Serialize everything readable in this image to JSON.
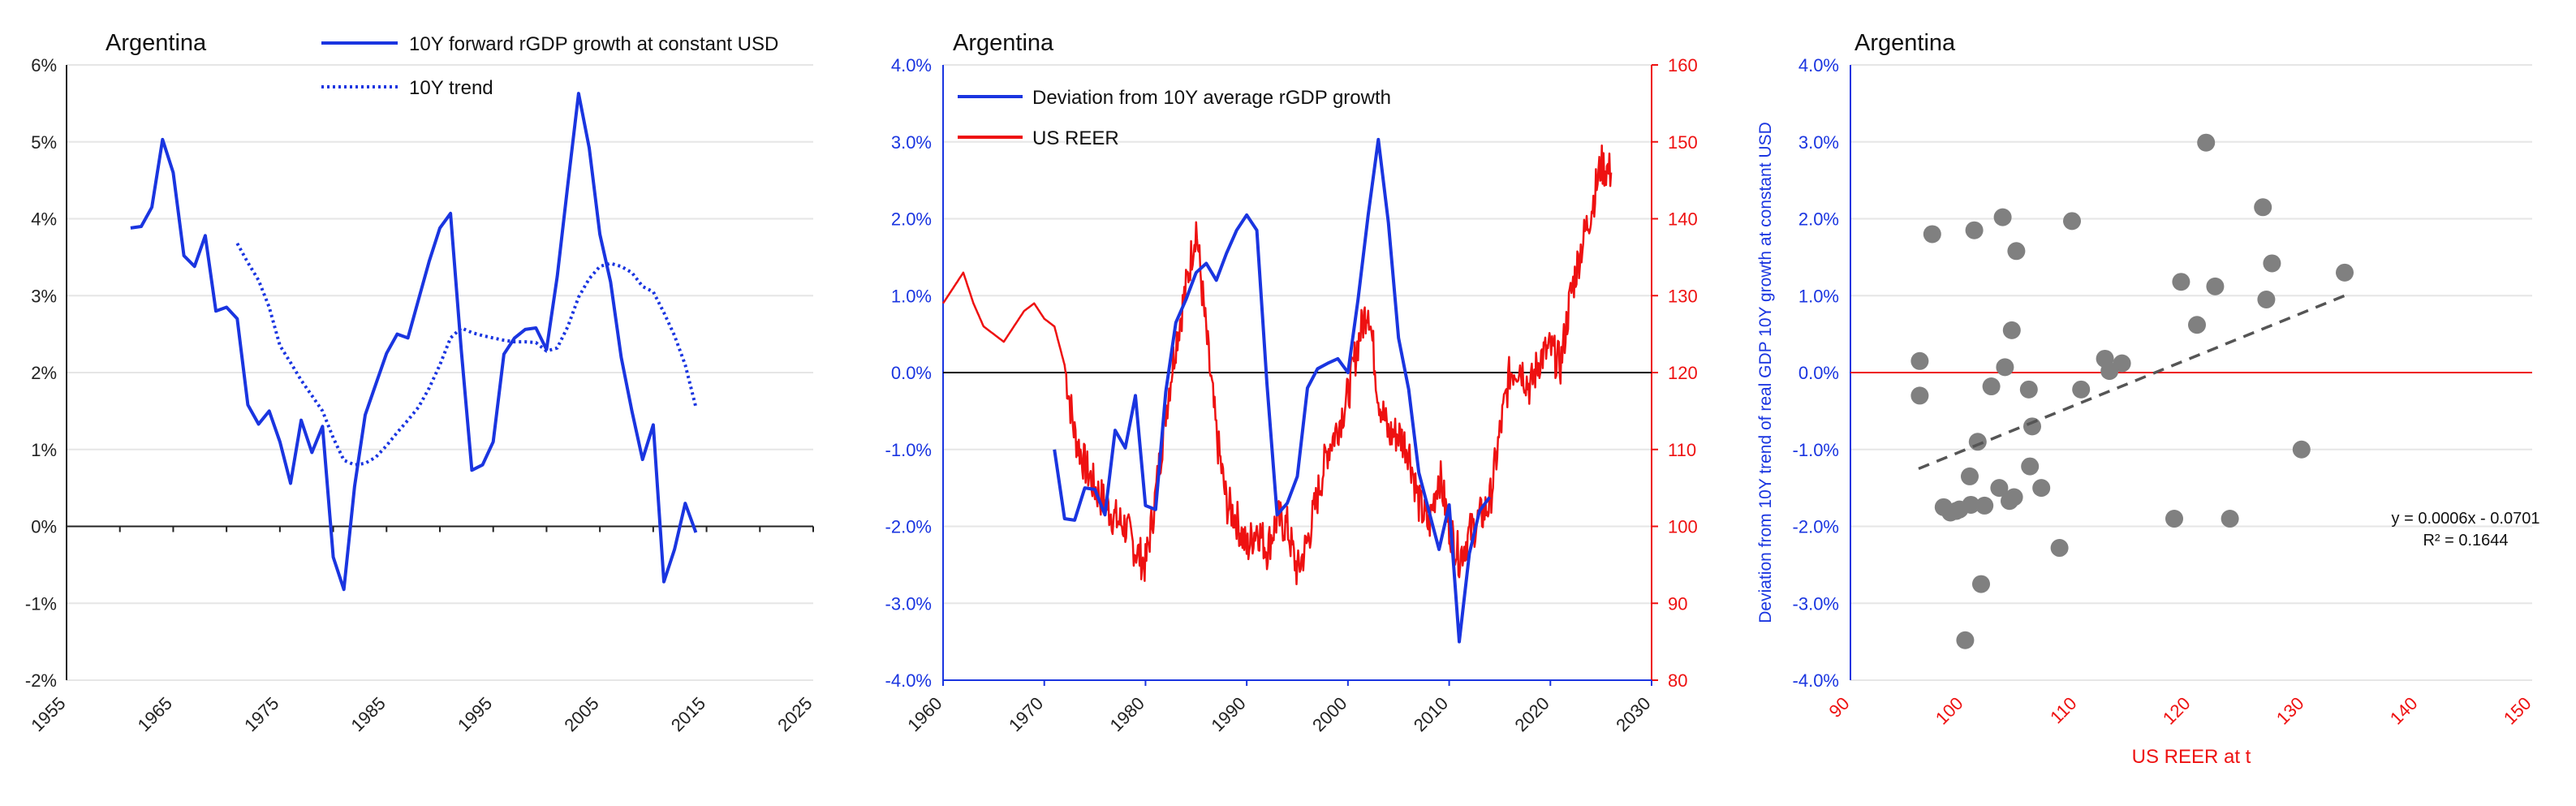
{
  "chart_data": [
    {
      "type": "line",
      "title": "Argentina",
      "xlim": [
        1955,
        2025
      ],
      "ylim": [
        -2,
        6
      ],
      "x_ticks": [
        "1955",
        "1965",
        "1975",
        "1985",
        "1995",
        "2005",
        "2015",
        "2025"
      ],
      "y_ticks": [
        "-2%",
        "-1%",
        "0%",
        "1%",
        "2%",
        "3%",
        "4%",
        "5%",
        "6%"
      ],
      "colors": {
        "series": "#1a35e0"
      },
      "legend": "top-right",
      "series": [
        {
          "name": "10Y forward rGDP growth at constant USD",
          "style": "solid",
          "points": [
            [
              1961,
              3.88
            ],
            [
              1962,
              3.9
            ],
            [
              1963,
              4.15
            ],
            [
              1964,
              5.03
            ],
            [
              1965,
              4.6
            ],
            [
              1966,
              3.52
            ],
            [
              1967,
              3.38
            ],
            [
              1968,
              3.78
            ],
            [
              1969,
              2.8
            ],
            [
              1970,
              2.85
            ],
            [
              1971,
              2.7
            ],
            [
              1972,
              1.58
            ],
            [
              1973,
              1.33
            ],
            [
              1974,
              1.5
            ],
            [
              1975,
              1.1
            ],
            [
              1976,
              0.56
            ],
            [
              1977,
              1.38
            ],
            [
              1978,
              0.96
            ],
            [
              1979,
              1.3
            ],
            [
              1980,
              -0.4
            ],
            [
              1981,
              -0.82
            ],
            [
              1982,
              0.52
            ],
            [
              1983,
              1.45
            ],
            [
              1984,
              1.85
            ],
            [
              1985,
              2.25
            ],
            [
              1986,
              2.5
            ],
            [
              1987,
              2.45
            ],
            [
              1988,
              2.95
            ],
            [
              1989,
              3.45
            ],
            [
              1990,
              3.88
            ],
            [
              1991,
              4.07
            ],
            [
              1992,
              2.3
            ],
            [
              1993,
              0.73
            ],
            [
              1994,
              0.8
            ],
            [
              1995,
              1.1
            ],
            [
              1996,
              2.24
            ],
            [
              1997,
              2.45
            ],
            [
              1998,
              2.56
            ],
            [
              1999,
              2.58
            ],
            [
              2000,
              2.3
            ],
            [
              2001,
              3.25
            ],
            [
              2002,
              4.45
            ],
            [
              2003,
              5.63
            ],
            [
              2004,
              4.92
            ],
            [
              2005,
              3.8
            ],
            [
              2006,
              3.18
            ],
            [
              2007,
              2.2
            ],
            [
              2008,
              1.5
            ],
            [
              2009,
              0.87
            ],
            [
              2010,
              1.32
            ],
            [
              2011,
              -0.72
            ],
            [
              2012,
              -0.3
            ],
            [
              2013,
              0.3
            ],
            [
              2014,
              -0.08
            ]
          ]
        },
        {
          "name": "10Y trend",
          "style": "dotted",
          "points": [
            [
              1971,
              3.68
            ],
            [
              1972,
              3.43
            ],
            [
              1973,
              3.2
            ],
            [
              1974,
              2.85
            ],
            [
              1975,
              2.35
            ],
            [
              1976,
              2.13
            ],
            [
              1977,
              1.9
            ],
            [
              1978,
              1.7
            ],
            [
              1979,
              1.5
            ],
            [
              1980,
              1.15
            ],
            [
              1981,
              0.86
            ],
            [
              1982,
              0.8
            ],
            [
              1983,
              0.82
            ],
            [
              1984,
              0.9
            ],
            [
              1985,
              1.05
            ],
            [
              1986,
              1.22
            ],
            [
              1987,
              1.38
            ],
            [
              1988,
              1.55
            ],
            [
              1989,
              1.8
            ],
            [
              1990,
              2.1
            ],
            [
              1991,
              2.45
            ],
            [
              1992,
              2.58
            ],
            [
              1993,
              2.52
            ],
            [
              1994,
              2.48
            ],
            [
              1995,
              2.45
            ],
            [
              1996,
              2.42
            ],
            [
              1997,
              2.4
            ],
            [
              1998,
              2.4
            ],
            [
              1999,
              2.39
            ],
            [
              2000,
              2.28
            ],
            [
              2001,
              2.32
            ],
            [
              2002,
              2.6
            ],
            [
              2003,
              2.98
            ],
            [
              2004,
              3.22
            ],
            [
              2005,
              3.38
            ],
            [
              2006,
              3.42
            ],
            [
              2007,
              3.38
            ],
            [
              2008,
              3.3
            ],
            [
              2009,
              3.12
            ],
            [
              2010,
              3.05
            ],
            [
              2011,
              2.78
            ],
            [
              2012,
              2.48
            ],
            [
              2013,
              2.1
            ],
            [
              2014,
              1.55
            ]
          ]
        }
      ]
    },
    {
      "type": "line",
      "title": "Argentina",
      "xlim": [
        1960,
        2030
      ],
      "ylim_left": [
        -4,
        4
      ],
      "ylim_right": [
        80,
        160
      ],
      "x_ticks": [
        "1960",
        "1970",
        "1980",
        "1990",
        "2000",
        "2010",
        "2020",
        "2030"
      ],
      "y_ticks_left": [
        "-4.0%",
        "-3.0%",
        "-2.0%",
        "-1.0%",
        "0.0%",
        "1.0%",
        "2.0%",
        "3.0%",
        "4.0%"
      ],
      "y_ticks_right": [
        "80",
        "90",
        "100",
        "110",
        "120",
        "130",
        "140",
        "150",
        "160"
      ],
      "colors": {
        "left_axis": "#1a35e0",
        "right_axis": "#ee1111"
      },
      "legend": "top-left",
      "series": [
        {
          "name": "Deviation from 10Y average rGDP growth",
          "axis": "left",
          "color": "#1a35e0",
          "points": [
            [
              1971,
              -1.0
            ],
            [
              1972,
              -1.9
            ],
            [
              1973,
              -1.92
            ],
            [
              1974,
              -1.5
            ],
            [
              1975,
              -1.52
            ],
            [
              1976,
              -1.85
            ],
            [
              1977,
              -0.75
            ],
            [
              1978,
              -0.98
            ],
            [
              1979,
              -0.3
            ],
            [
              1980,
              -1.73
            ],
            [
              1981,
              -1.78
            ],
            [
              1982,
              -0.25
            ],
            [
              1983,
              0.65
            ],
            [
              1984,
              0.95
            ],
            [
              1985,
              1.3
            ],
            [
              1986,
              1.42
            ],
            [
              1987,
              1.2
            ],
            [
              1988,
              1.55
            ],
            [
              1989,
              1.85
            ],
            [
              1990,
              2.05
            ],
            [
              1991,
              1.85
            ],
            [
              1992,
              -0.15
            ],
            [
              1993,
              -1.85
            ],
            [
              1994,
              -1.7
            ],
            [
              1995,
              -1.35
            ],
            [
              1996,
              -0.2
            ],
            [
              1997,
              0.05
            ],
            [
              1998,
              0.12
            ],
            [
              1999,
              0.18
            ],
            [
              2000,
              0.0
            ],
            [
              2001,
              0.95
            ],
            [
              2002,
              2.05
            ],
            [
              2003,
              3.03
            ],
            [
              2004,
              1.95
            ],
            [
              2005,
              0.45
            ],
            [
              2006,
              -0.22
            ],
            [
              2007,
              -1.3
            ],
            [
              2008,
              -1.8
            ],
            [
              2009,
              -2.3
            ],
            [
              2010,
              -1.72
            ],
            [
              2011,
              -3.5
            ],
            [
              2012,
              -2.35
            ],
            [
              2013,
              -1.8
            ],
            [
              2014,
              -1.62
            ]
          ]
        },
        {
          "name": "US REER",
          "axis": "right",
          "color": "#ee1111",
          "points": [
            [
              1960,
              129
            ],
            [
              1961,
              131
            ],
            [
              1962,
              133
            ],
            [
              1963,
              129
            ],
            [
              1964,
              126
            ],
            [
              1965,
              125
            ],
            [
              1966,
              124
            ],
            [
              1967,
              126
            ],
            [
              1968,
              128
            ],
            [
              1969,
              129
            ],
            [
              1970,
              127
            ],
            [
              1971,
              126
            ],
            [
              1972,
              121
            ],
            [
              1973,
              112
            ],
            [
              1974,
              108
            ],
            [
              1975,
              105
            ],
            [
              1976,
              103
            ],
            [
              1977,
              101
            ],
            [
              1978,
              100
            ],
            [
              1979,
              97
            ],
            [
              1980,
              95
            ],
            [
              1981,
              104
            ],
            [
              1982,
              115
            ],
            [
              1983,
              124
            ],
            [
              1984,
              131
            ],
            [
              1985,
              139
            ],
            [
              1986,
              125
            ],
            [
              1987,
              112
            ],
            [
              1988,
              103
            ],
            [
              1989,
              101
            ],
            [
              1990,
              97
            ],
            [
              1991,
              100
            ],
            [
              1992,
              97
            ],
            [
              1993,
              101
            ],
            [
              1994,
              100
            ],
            [
              1995,
              94
            ],
            [
              1996,
              98
            ],
            [
              1997,
              104
            ],
            [
              1998,
              110
            ],
            [
              1999,
              113
            ],
            [
              2000,
              117
            ],
            [
              2001,
              124
            ],
            [
              2002,
              129
            ],
            [
              2003,
              117
            ],
            [
              2004,
              112
            ],
            [
              2005,
              112
            ],
            [
              2006,
              110
            ],
            [
              2007,
              103
            ],
            [
              2008,
              100
            ],
            [
              2009,
              107
            ],
            [
              2010,
              100
            ],
            [
              2011,
              96
            ],
            [
              2012,
              99
            ],
            [
              2013,
              101
            ],
            [
              2014,
              103
            ],
            [
              2015,
              112
            ],
            [
              2016,
              120
            ],
            [
              2017,
              121
            ],
            [
              2018,
              118
            ],
            [
              2019,
              122
            ],
            [
              2020,
              123
            ],
            [
              2021,
              121
            ],
            [
              2022,
              130
            ],
            [
              2023,
              136
            ],
            [
              2024,
              141
            ],
            [
              2025,
              147
            ],
            [
              2026,
              146
            ]
          ]
        }
      ]
    },
    {
      "type": "scatter",
      "title": "Argentina",
      "xlabel": "US REER at t",
      "ylabel": "Deviation from 10Y trend of real GDP 10Y growth at constant USD",
      "xlim": [
        90,
        150
      ],
      "ylim": [
        -4,
        4
      ],
      "x_ticks": [
        "90",
        "100",
        "110",
        "120",
        "130",
        "140",
        "150"
      ],
      "y_ticks": [
        "-4.0%",
        "-3.0%",
        "-2.0%",
        "-1.0%",
        "0.0%",
        "1.0%",
        "2.0%",
        "3.0%",
        "4.0%"
      ],
      "colors": {
        "points": "#808080",
        "x_axis": "#ee1111",
        "y_axis": "#1a35e0",
        "trend": "#555555"
      },
      "equation": "y = 0.0006x - 0.0701",
      "r_squared": "R² = 0.1644",
      "trendline": {
        "slope": 0.0006,
        "intercept": -0.0701,
        "x_range": [
          96,
          134
        ]
      },
      "points": [
        [
          96.1,
          0.15
        ],
        [
          96.1,
          -0.3
        ],
        [
          97.2,
          1.8
        ],
        [
          98.2,
          -1.75
        ],
        [
          98.8,
          -1.82
        ],
        [
          99.3,
          -1.8
        ],
        [
          99.6,
          -1.78
        ],
        [
          100.1,
          -3.48
        ],
        [
          100.6,
          -1.72
        ],
        [
          100.5,
          -1.35
        ],
        [
          100.9,
          1.85
        ],
        [
          101.2,
          -0.9
        ],
        [
          101.5,
          -2.75
        ],
        [
          101.8,
          -1.73
        ],
        [
          102.4,
          -0.18
        ],
        [
          103.1,
          -1.5
        ],
        [
          103.4,
          2.02
        ],
        [
          103.6,
          0.07
        ],
        [
          104.0,
          -1.67
        ],
        [
          104.4,
          -1.62
        ],
        [
          104.2,
          0.55
        ],
        [
          104.6,
          1.58
        ],
        [
          105.7,
          -0.22
        ],
        [
          105.8,
          -1.22
        ],
        [
          106.0,
          -0.7
        ],
        [
          106.8,
          -1.5
        ],
        [
          108.4,
          -2.28
        ],
        [
          109.5,
          1.97
        ],
        [
          110.3,
          -0.22
        ],
        [
          112.4,
          0.18
        ],
        [
          112.8,
          0.02
        ],
        [
          113.9,
          0.12
        ],
        [
          118.5,
          -1.9
        ],
        [
          119.1,
          1.18
        ],
        [
          120.5,
          0.62
        ],
        [
          121.3,
          2.99
        ],
        [
          122.1,
          1.12
        ],
        [
          123.4,
          -1.9
        ],
        [
          126.3,
          2.15
        ],
        [
          126.6,
          0.95
        ],
        [
          127.1,
          1.42
        ],
        [
          129.7,
          -1.0
        ],
        [
          133.5,
          1.3
        ]
      ]
    }
  ]
}
